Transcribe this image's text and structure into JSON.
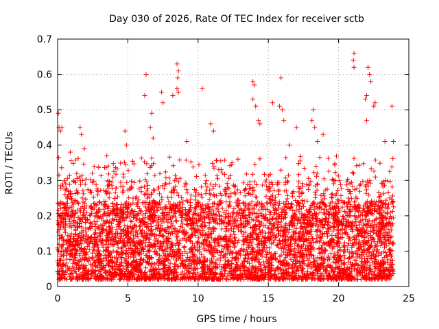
{
  "chart_data": {
    "type": "scatter",
    "title": "Day 030 of 2026, Rate Of TEC Index for receiver sctb",
    "xlabel": "GPS time / hours",
    "ylabel": "ROTI / TECUs",
    "xlim": [
      0,
      25
    ],
    "ylim": [
      0,
      0.7
    ],
    "x_ticks": [
      0,
      5,
      10,
      15,
      20,
      25
    ],
    "y_ticks": [
      0,
      0.1,
      0.2,
      0.3,
      0.4,
      0.5,
      0.6,
      0.7
    ],
    "x_tick_labels": [
      "0",
      "5",
      "10",
      "15",
      "20",
      "25"
    ],
    "y_tick_labels": [
      "0",
      "0.1",
      "0.2",
      "0.3",
      "0.4",
      "0.5",
      "0.6",
      "0.7"
    ],
    "grid": true,
    "marker": "plus",
    "color": "#ff0000",
    "series": [
      {
        "points": [
          [
            0.05,
            0.49
          ],
          [
            0.1,
            0.45
          ],
          [
            0.2,
            0.44
          ],
          [
            0.3,
            0.45
          ],
          [
            0.5,
            0.3
          ],
          [
            0.9,
            0.38
          ],
          [
            1.6,
            0.45
          ],
          [
            1.7,
            0.43
          ],
          [
            1.9,
            0.39
          ],
          [
            2.6,
            0.34
          ],
          [
            3.5,
            0.37
          ],
          [
            4.8,
            0.44
          ],
          [
            4.9,
            0.4
          ],
          [
            6.3,
            0.6
          ],
          [
            6.2,
            0.54
          ],
          [
            6.7,
            0.49
          ],
          [
            6.6,
            0.45
          ],
          [
            6.8,
            0.42
          ],
          [
            7.4,
            0.55
          ],
          [
            7.5,
            0.52
          ],
          [
            8.2,
            0.54
          ],
          [
            8.5,
            0.63
          ],
          [
            8.6,
            0.61
          ],
          [
            8.55,
            0.59
          ],
          [
            8.5,
            0.56
          ],
          [
            8.6,
            0.55
          ],
          [
            9.2,
            0.41
          ],
          [
            10.3,
            0.56
          ],
          [
            10.9,
            0.46
          ],
          [
            11.1,
            0.44
          ],
          [
            13.9,
            0.58
          ],
          [
            14.0,
            0.57
          ],
          [
            13.9,
            0.53
          ],
          [
            14.1,
            0.51
          ],
          [
            14.3,
            0.47
          ],
          [
            14.4,
            0.46
          ],
          [
            15.3,
            0.52
          ],
          [
            15.9,
            0.59
          ],
          [
            15.8,
            0.51
          ],
          [
            16.0,
            0.5
          ],
          [
            16.1,
            0.47
          ],
          [
            16.5,
            0.4
          ],
          [
            17.0,
            0.45
          ],
          [
            18.2,
            0.5
          ],
          [
            18.1,
            0.47
          ],
          [
            18.3,
            0.45
          ],
          [
            18.5,
            0.41
          ],
          [
            18.9,
            0.43
          ],
          [
            21.1,
            0.66
          ],
          [
            21.05,
            0.64
          ],
          [
            21.1,
            0.62
          ],
          [
            21.9,
            0.53
          ],
          [
            22.0,
            0.47
          ],
          [
            22.1,
            0.62
          ],
          [
            22.2,
            0.6
          ],
          [
            22.3,
            0.58
          ],
          [
            22.0,
            0.54
          ],
          [
            22.6,
            0.52
          ],
          [
            22.5,
            0.51
          ],
          [
            23.3,
            0.41
          ],
          [
            23.8,
            0.51
          ],
          [
            23.9,
            0.41
          ]
        ]
      }
    ]
  }
}
